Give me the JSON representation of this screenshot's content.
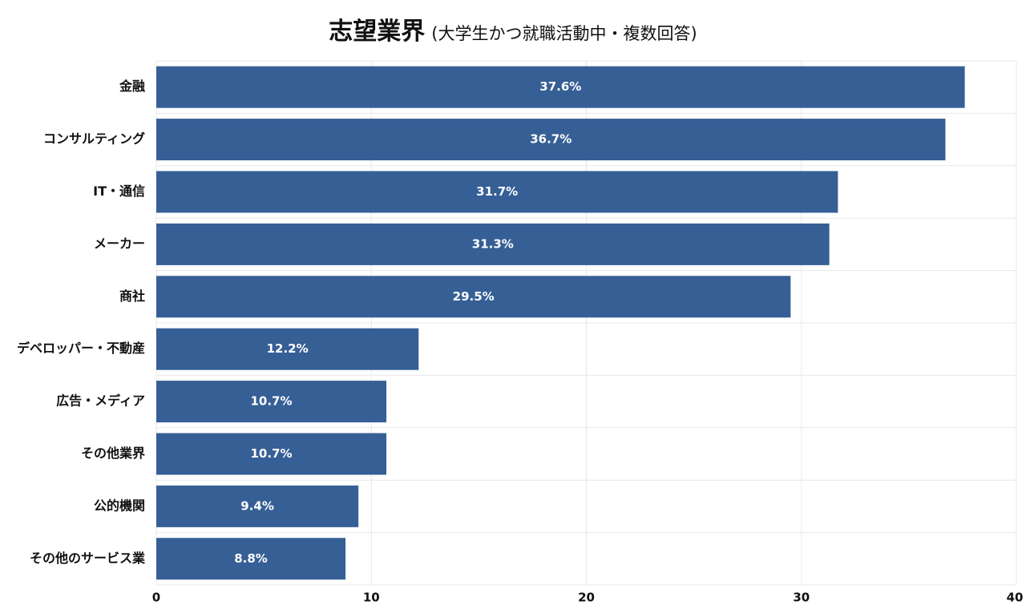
{
  "chart_data": {
    "type": "bar",
    "orientation": "horizontal",
    "title": "志望業界",
    "subtitle": "(大学生かつ就職活動中・複数回答)",
    "categories": [
      "金融",
      "コンサルティング",
      "IT・通信",
      "メーカー",
      "商社",
      "デベロッパー・不動産",
      "広告・メディア",
      "その他業界",
      "公的機関",
      "その他のサービス業"
    ],
    "values": [
      37.6,
      36.7,
      31.7,
      31.3,
      29.5,
      12.2,
      10.7,
      10.7,
      9.4,
      8.8
    ],
    "data_labels": [
      "37.6%",
      "36.7%",
      "31.7%",
      "31.3%",
      "29.5%",
      "12.2%",
      "10.7%",
      "10.7%",
      "9.4%",
      "8.8%"
    ],
    "xlim": [
      0,
      40
    ],
    "xticks": [
      0,
      10,
      20,
      30,
      40
    ],
    "xtick_labels": [
      "0",
      "10",
      "20",
      "30",
      "40"
    ],
    "xlabel": "",
    "ylabel": "",
    "grid": true,
    "bar_color": "#365f96",
    "grid_color": "#e8e8e8"
  }
}
